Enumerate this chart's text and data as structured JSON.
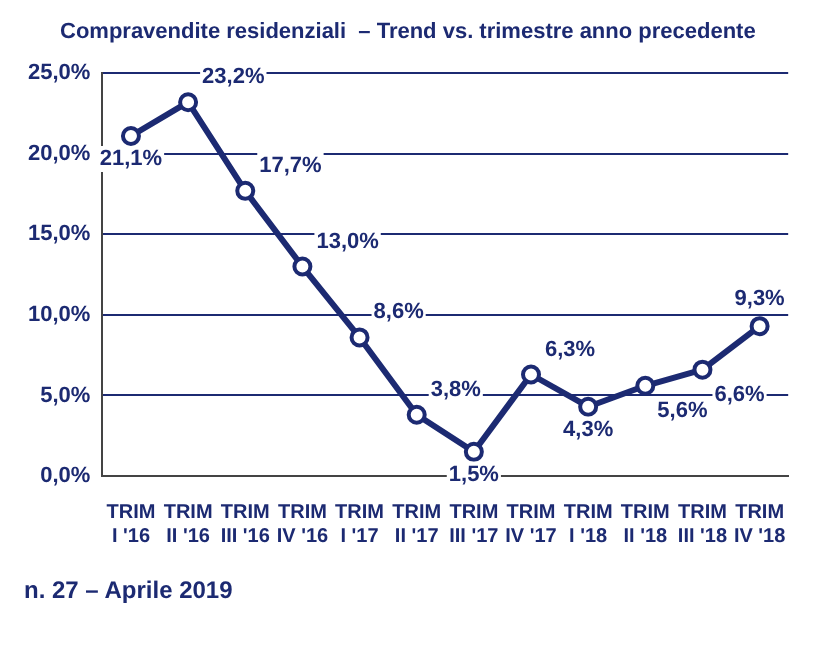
{
  "chart_data": {
    "type": "line",
    "title": "Compravendite residenziali  – Trend vs. trimestre anno precedente",
    "categories": [
      "TRIM\nI '16",
      "TRIM\nII '16",
      "TRIM\nIII '16",
      "TRIM\nIV '16",
      "TRIM\nI '17",
      "TRIM\nII '17",
      "TRIM\nIII '17",
      "TRIM\nIV '17",
      "TRIM\nI '18",
      "TRIM\nII '18",
      "TRIM\nIII '18",
      "TRIM\nIV '18"
    ],
    "series": [
      {
        "color": "#1c2a72",
        "values": [
          21.1,
          23.2,
          17.7,
          13.0,
          8.6,
          3.8,
          1.5,
          6.3,
          4.3,
          5.6,
          6.6,
          9.3
        ],
        "value_labels": [
          "21,1%",
          "23,2%",
          "17,7%",
          "13,0%",
          "8,6%",
          "3,8%",
          "1,5%",
          "6,3%",
          "4,3%",
          "5,6%",
          "6,6%",
          "9,3%"
        ]
      }
    ],
    "ylim": [
      0,
      25
    ],
    "yticks": [
      {
        "value": 0,
        "label": "0,0%"
      },
      {
        "value": 5,
        "label": "5,0%"
      },
      {
        "value": 10,
        "label": "10,0%"
      },
      {
        "value": 15,
        "label": "15,0%"
      },
      {
        "value": 20,
        "label": "20,0%"
      },
      {
        "value": 25,
        "label": "25,0%"
      }
    ],
    "grid": "y",
    "marker": "circle",
    "line_style": "solid",
    "legend": false,
    "annotations": [
      "n. 27 – Aprile 2019"
    ]
  }
}
